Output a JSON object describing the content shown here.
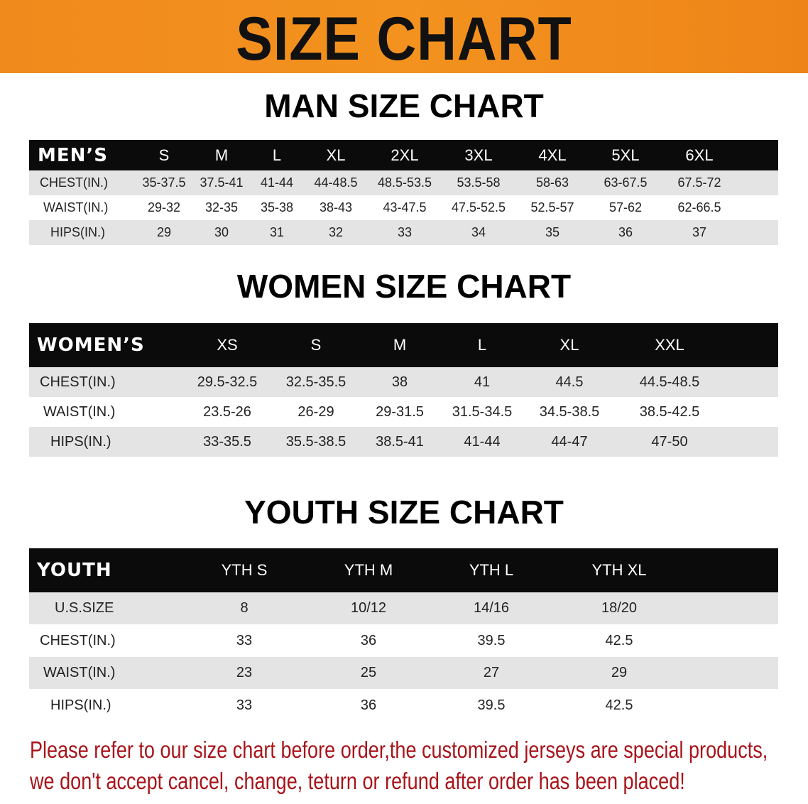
{
  "banner": {
    "title": "SIZE CHART"
  },
  "men": {
    "title": "MAN SIZE CHART",
    "header": [
      "MEN’S",
      "S",
      "M",
      "L",
      "XL",
      "2XL",
      "3XL",
      "4XL",
      "5XL",
      "6XL"
    ],
    "rows": [
      [
        "CHEST(IN.)",
        "35-37.5",
        "37.5-41",
        "41-44",
        "44-48.5",
        "48.5-53.5",
        "53.5-58",
        "58-63",
        "63-67.5",
        "67.5-72"
      ],
      [
        "WAIST(IN.)",
        "29-32",
        "32-35",
        "35-38",
        "38-43",
        "43-47.5",
        "47.5-52.5",
        "52.5-57",
        "57-62",
        "62-66.5"
      ],
      [
        "HIPS(IN.)",
        "29",
        "30",
        "31",
        "32",
        "33",
        "34",
        "35",
        "36",
        "37"
      ]
    ]
  },
  "women": {
    "title": "WOMEN SIZE CHART",
    "header": [
      "WOMEN’S",
      "XS",
      "S",
      "M",
      "L",
      "XL",
      "XXL"
    ],
    "rows": [
      [
        "CHEST(IN.)",
        "29.5-32.5",
        "32.5-35.5",
        "38",
        "41",
        "44.5",
        "44.5-48.5"
      ],
      [
        "WAIST(IN.)",
        "23.5-26",
        "26-29",
        "29-31.5",
        "31.5-34.5",
        "34.5-38.5",
        "38.5-42.5"
      ],
      [
        "HIPS(IN.)",
        "33-35.5",
        "35.5-38.5",
        "38.5-41",
        "41-44",
        "44-47",
        "47-50"
      ]
    ]
  },
  "youth": {
    "title": "YOUTH SIZE CHART",
    "header": [
      "YOUTH",
      "YTH S",
      "YTH M",
      "YTH L",
      "YTH XL"
    ],
    "rows": [
      [
        "U.S.SIZE",
        "8",
        "10/12",
        "14/16",
        "18/20"
      ],
      [
        "CHEST(IN.)",
        "33",
        "36",
        "39.5",
        "42.5"
      ],
      [
        "WAIST(IN.)",
        "23",
        "25",
        "27",
        "29"
      ],
      [
        "HIPS(IN.)",
        "33",
        "36",
        "39.5",
        "42.5"
      ]
    ]
  },
  "note": {
    "line1": "Please refer to our size chart before order,the customized jerseys are special products,",
    "line2": "we don't accept cancel, change, teturn or refund after order has been placed!"
  },
  "colors": {
    "banner": "#f08a1c",
    "header_row": "#0b0b0b",
    "stripe": "#e4e4e4",
    "note_text": "#a8141a"
  }
}
